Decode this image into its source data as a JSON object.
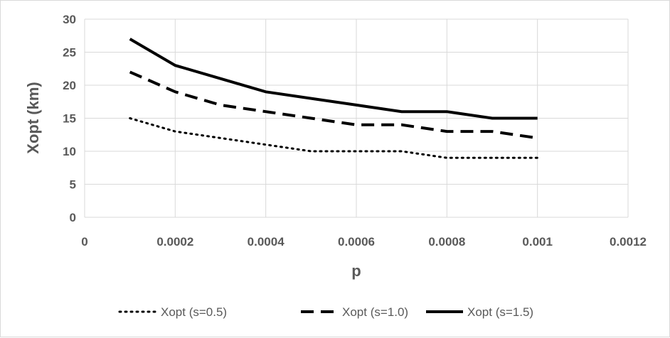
{
  "chart_data": {
    "type": "line",
    "title": "",
    "xlabel": "p",
    "ylabel": "Xopt (km)",
    "xlim": [
      0,
      0.0012
    ],
    "ylim": [
      0,
      30
    ],
    "xticks": [
      "0",
      "0.0002",
      "0.0004",
      "0.0006",
      "0.0008",
      "0.001",
      "0.0012"
    ],
    "yticks": [
      "0",
      "5",
      "10",
      "15",
      "20",
      "25",
      "30"
    ],
    "grid": true,
    "legend_position": "bottom",
    "x": [
      0.0001,
      0.0002,
      0.0003,
      0.0004,
      0.0005,
      0.0006,
      0.0007,
      0.0008,
      0.0009,
      0.001
    ],
    "series": [
      {
        "name": "Xopt (s=0.5)",
        "style": "dotted",
        "color": "#000000",
        "values": [
          15,
          13,
          12,
          11,
          10,
          10,
          10,
          9,
          9,
          9
        ]
      },
      {
        "name": "Xopt (s=1.0)",
        "style": "dashed",
        "color": "#000000",
        "values": [
          22,
          19,
          17,
          16,
          15,
          14,
          14,
          13,
          13,
          12
        ]
      },
      {
        "name": "Xopt (s=1.5)",
        "style": "solid",
        "color": "#000000",
        "values": [
          27,
          23,
          21,
          19,
          18,
          17,
          16,
          16,
          15,
          15
        ]
      }
    ]
  }
}
